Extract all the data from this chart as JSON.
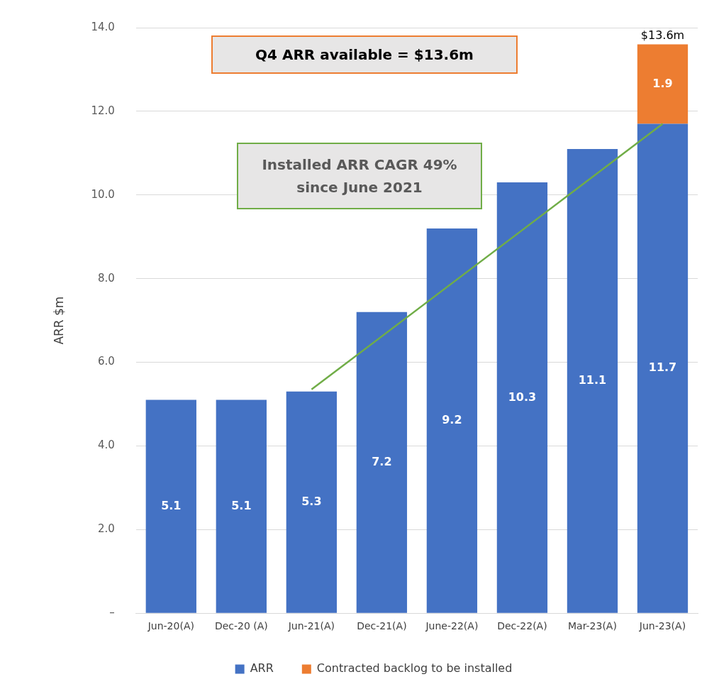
{
  "chart_data": {
    "type": "bar",
    "stacked": true,
    "ylabel": "ARR $m",
    "categories": [
      "Jun-20(A)",
      "Dec-20 (A)",
      "Jun-21(A)",
      "Dec-21(A)",
      "June-22(A)",
      "Dec-22(A)",
      "Mar-23(A)",
      "Jun-23(A)"
    ],
    "series": [
      {
        "name": "ARR",
        "color": "#4472c4",
        "values": [
          5.1,
          5.1,
          5.3,
          7.2,
          9.2,
          10.3,
          11.1,
          11.7
        ],
        "value_labels": [
          "5.1",
          "5.1",
          "5.3",
          "7.2",
          "9.2",
          "10.3",
          "11.1",
          "11.7"
        ]
      },
      {
        "name": "Contracted backlog to be installed",
        "color": "#ed7d31",
        "values": [
          null,
          null,
          null,
          null,
          null,
          null,
          null,
          1.9
        ],
        "value_labels": [
          null,
          null,
          null,
          null,
          null,
          null,
          null,
          "1.9"
        ]
      },
      {
        "type": "line",
        "color": "#70ad47",
        "values": [
          null,
          null,
          5.35,
          null,
          null,
          null,
          null,
          11.7
        ]
      }
    ],
    "totals": [
      null,
      null,
      null,
      null,
      null,
      null,
      null,
      "$13.6m"
    ],
    "annotations": [
      "Q4 ARR available = $13.6m",
      "Installed ARR CAGR 49% since June 2021"
    ],
    "ylim": [
      0,
      14
    ],
    "yticks": [
      {
        "value": 0,
        "label": "–"
      },
      {
        "value": 2,
        "label": "2.0"
      },
      {
        "value": 4,
        "label": "4.0"
      },
      {
        "value": 6,
        "label": "6.0"
      },
      {
        "value": 8,
        "label": "8.0"
      },
      {
        "value": 10,
        "label": "10.0"
      },
      {
        "value": 12,
        "label": "12.0"
      },
      {
        "value": 14,
        "label": "14.0"
      }
    ],
    "grid": "y",
    "legend": "bottom",
    "marker": "none",
    "line_style": "solid"
  }
}
